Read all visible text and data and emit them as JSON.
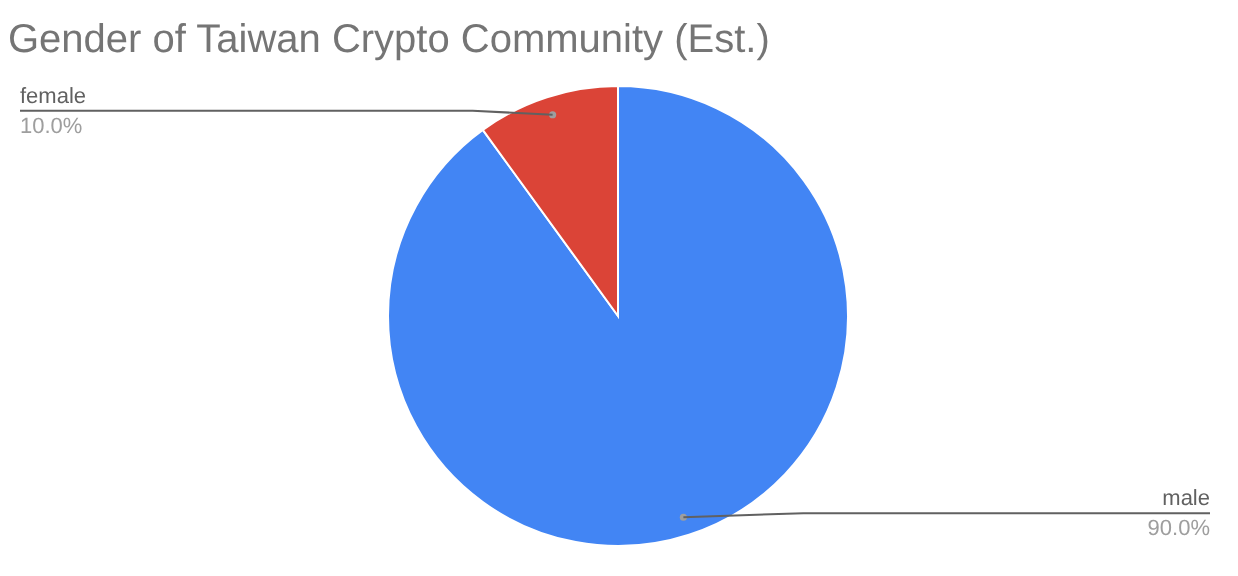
{
  "chart_data": {
    "type": "pie",
    "title": "Gender of Taiwan Crypto Community (Est.)",
    "categories": [
      "male",
      "female"
    ],
    "values": [
      90,
      10
    ],
    "colors": [
      "#4285f4",
      "#db4437"
    ],
    "value_labels": [
      "90.0%",
      "10.0%"
    ],
    "legend": false
  }
}
